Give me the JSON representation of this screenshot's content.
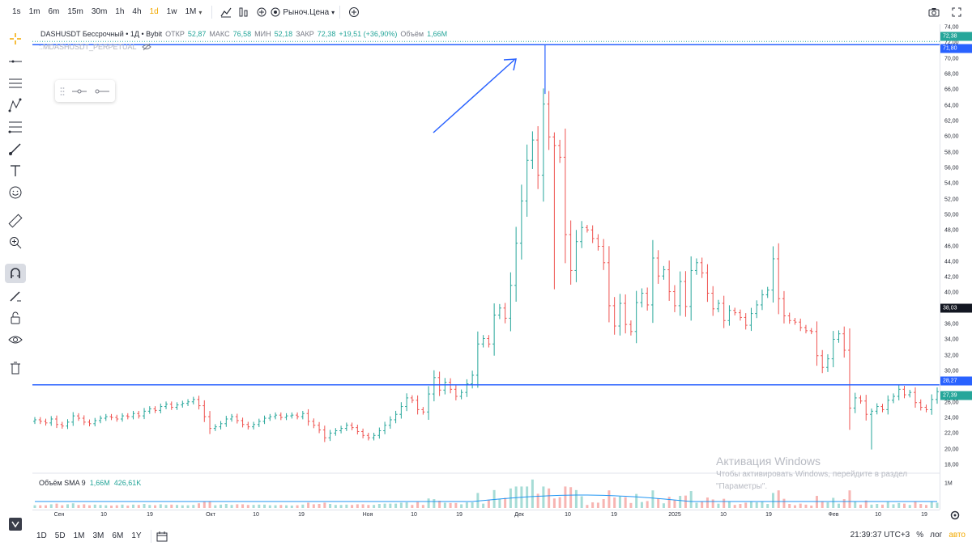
{
  "toolbar": {
    "timeframes": [
      "1s",
      "1m",
      "6m",
      "15m",
      "30m",
      "1h",
      "4h",
      "1d",
      "1w",
      "1M"
    ],
    "active_timeframe": "1d",
    "price_type": "Рыноч.Цена"
  },
  "legend": {
    "symbol": "DASHUSDT Бессрочный • 1Д • Bybit",
    "open_label": "ОТКР",
    "open": "52,87",
    "high_label": "МАКС",
    "high": "76,58",
    "low_label": "МИН",
    "low": "52,18",
    "close_label": "ЗАКР",
    "close": "72,38",
    "change": "+19,51 (+36,90%)",
    "volume_label": "Объём",
    "volume": "1,66M",
    "sub_symbol": ":.MDASHUSDT_PERPETUAL"
  },
  "volume_legend": {
    "label": "Объём SMA 9",
    "value1": "1,66M",
    "value2": "426,61K"
  },
  "price_scale": {
    "ticks": [
      "74,00",
      "72,00",
      "70,00",
      "68,00",
      "66,00",
      "64,00",
      "62,00",
      "60,00",
      "58,00",
      "56,00",
      "54,00",
      "52,00",
      "50,00",
      "48,00",
      "46,00",
      "44,00",
      "42,00",
      "40,00",
      "36,00",
      "34,00",
      "32,00",
      "30,00",
      "26,00",
      "24,00",
      "22,00",
      "20,00",
      "18,00"
    ],
    "tag_last": "72,38",
    "tag_hline": "71,80",
    "tag_cursor": "38,03",
    "tag_support": "28,27",
    "tag_current": "27,39",
    "volume_tick": "1M"
  },
  "time_axis": [
    "Сен",
    "10",
    "19",
    "Окт",
    "10",
    "19",
    "Ноя",
    "10",
    "19",
    "Дек",
    "10",
    "19",
    "2025",
    "10",
    "19",
    "Фев",
    "10",
    "19"
  ],
  "bottom": {
    "ranges": [
      "1D",
      "5D",
      "1M",
      "3M",
      "6M",
      "1Y"
    ],
    "clock": "21:39:37 UTC+3",
    "percent": "%",
    "log": "лог",
    "auto": "авто"
  },
  "watermark": {
    "title": "Активация Windows",
    "line1": "Чтобы активировать Windows, перейдите в раздел",
    "line2": "\"Параметры\"."
  },
  "colors": {
    "up": "#26a69a",
    "down": "#ef5350",
    "line": "#2962ff",
    "accent": "#f2a900"
  },
  "chart_data": {
    "type": "candlestick",
    "symbol": "DASHUSDT",
    "ylim": [
      18,
      74
    ],
    "support_level": 28.27,
    "high_level": 71.8,
    "x_labels": [
      "Сен",
      "10",
      "19",
      "Окт",
      "10",
      "19",
      "Ноя",
      "10",
      "19",
      "Дек",
      "10",
      "19",
      "2025",
      "10",
      "19",
      "Фев",
      "10",
      "19"
    ],
    "close": [
      23.8,
      23.6,
      23.4,
      23.9,
      23.2,
      23.0,
      23.5,
      24.3,
      24.0,
      23.5,
      23.3,
      23.7,
      24.0,
      24.2,
      24.1,
      23.9,
      24.3,
      24.2,
      24.6,
      24.3,
      24.9,
      25.2,
      25.0,
      25.5,
      25.8,
      25.4,
      25.7,
      25.9,
      26.1,
      26.4,
      25.6,
      24.2,
      22.7,
      22.9,
      23.3,
      23.9,
      24.2,
      23.7,
      23.2,
      22.9,
      23.2,
      23.6,
      24.0,
      24.2,
      24.4,
      24.1,
      24.3,
      24.4,
      24.2,
      24.6,
      23.6,
      23.1,
      22.5,
      21.5,
      22.1,
      22.4,
      22.7,
      23.1,
      22.8,
      22.3,
      21.8,
      21.5,
      21.8,
      22.4,
      23.1,
      23.8,
      24.5,
      25.5,
      26.6,
      26.3,
      25.1,
      24.8,
      27.1,
      29.2,
      27.6,
      28.6,
      27.7,
      26.8,
      27.3,
      28.4,
      29.5,
      33.5,
      34.2,
      33.5,
      37.2,
      38.1,
      36.8,
      41.0,
      46.4,
      51.8,
      57.0,
      59.6,
      55.1,
      64.2,
      60.0,
      58.9,
      57.4,
      47.5,
      42.9,
      46.6,
      48.4,
      48.1,
      47.0,
      46.0,
      43.9,
      38.4,
      35.8,
      38.7,
      36.0,
      35.1,
      38.8,
      40.0,
      38.5,
      44.5,
      42.2,
      43.0,
      40.2,
      38.4,
      41.5,
      38.3,
      42.9,
      43.9,
      42.6,
      40.0,
      38.0,
      38.7,
      36.5,
      37.8,
      37.5,
      36.9,
      35.9,
      37.4,
      38.5,
      39.8,
      40.4,
      44.4,
      39.3,
      37.1,
      36.5,
      36.3,
      35.6,
      35.2,
      35.1,
      32.0,
      30.5,
      31.6,
      34.1,
      34.8,
      32.7,
      25.3,
      26.6,
      26.2,
      24.5,
      24.9,
      25.5,
      25.1,
      26.3,
      26.8,
      27.7,
      27.0,
      27.3,
      26.0,
      25.4,
      25.1,
      26.4,
      27.4
    ]
  }
}
